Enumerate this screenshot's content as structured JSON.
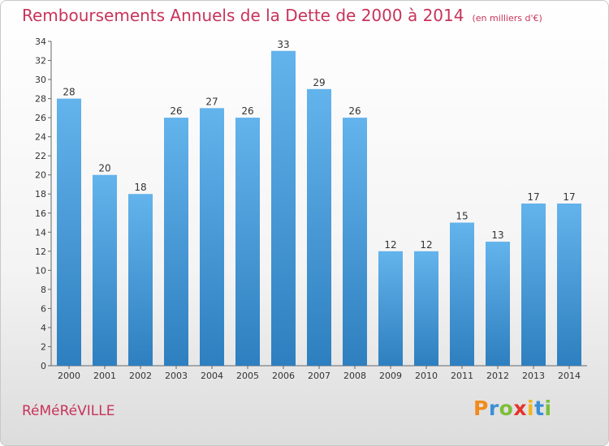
{
  "header": {
    "title": "Remboursements Annuels de la Dette de 2000 à 2014",
    "unit": "(en milliers d'€)"
  },
  "footer": {
    "town": "RéMéRéVILLE",
    "logo_text": "Proxiti"
  },
  "colors": {
    "title": "#c8335a",
    "bar_top": "#63b3ec",
    "bar_bottom": "#2e7fbf",
    "logo_letters": [
      "#f28a1c",
      "#3a8fd8",
      "#7cbf3a",
      "#e6332a",
      "#f2b51c",
      "#3a8fd8",
      "#7cbf3a"
    ]
  },
  "chart_data": {
    "type": "bar",
    "title": "Remboursements Annuels de la Dette de 2000 à 2014",
    "categories": [
      "2000",
      "2001",
      "2002",
      "2003",
      "2004",
      "2005",
      "2006",
      "2007",
      "2008",
      "2009",
      "2010",
      "2011",
      "2012",
      "2013",
      "2014"
    ],
    "values": [
      28,
      20,
      18,
      26,
      27,
      26,
      33,
      29,
      26,
      12,
      12,
      15,
      13,
      17,
      17
    ],
    "ylim": [
      0,
      34
    ],
    "yticks": [
      0,
      2,
      4,
      6,
      8,
      10,
      12,
      14,
      16,
      18,
      20,
      22,
      24,
      26,
      28,
      30,
      32,
      34
    ],
    "grid": false,
    "legend": "none"
  }
}
